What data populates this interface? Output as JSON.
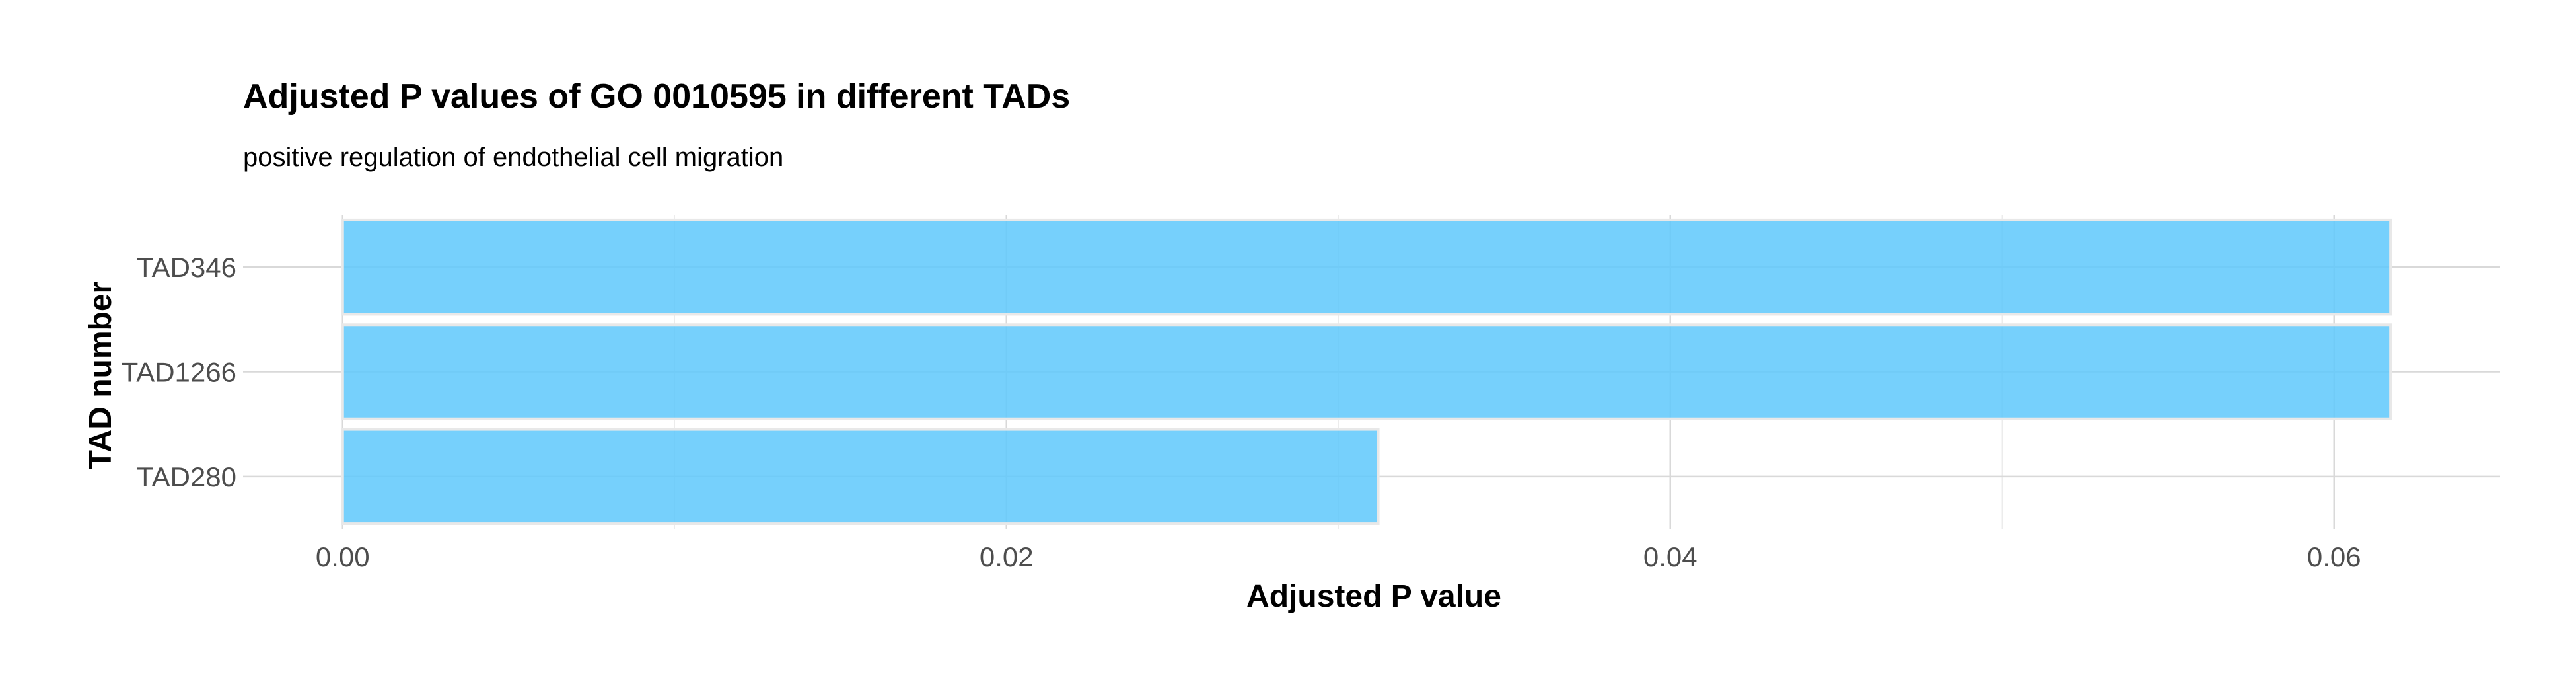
{
  "chart_data": {
    "type": "bar",
    "orientation": "horizontal",
    "title": "Adjusted P values of GO 0010595 in different TADs",
    "subtitle": "positive regulation of endothelial cell migration",
    "xlabel": "Adjusted P value",
    "ylabel": "TAD number",
    "categories": [
      "TAD346",
      "TAD1266",
      "TAD280"
    ],
    "values": [
      0.0617,
      0.0617,
      0.0312
    ],
    "xlim": [
      -0.003,
      0.065
    ],
    "xticks": [
      0.0,
      0.02,
      0.04,
      0.06
    ],
    "xtick_labels": [
      "0.00",
      "0.02",
      "0.04",
      "0.06"
    ],
    "xminor": [
      0.01,
      0.03,
      0.05
    ],
    "grid": true,
    "legend": "none",
    "bar_color": "#5ec8fb"
  }
}
